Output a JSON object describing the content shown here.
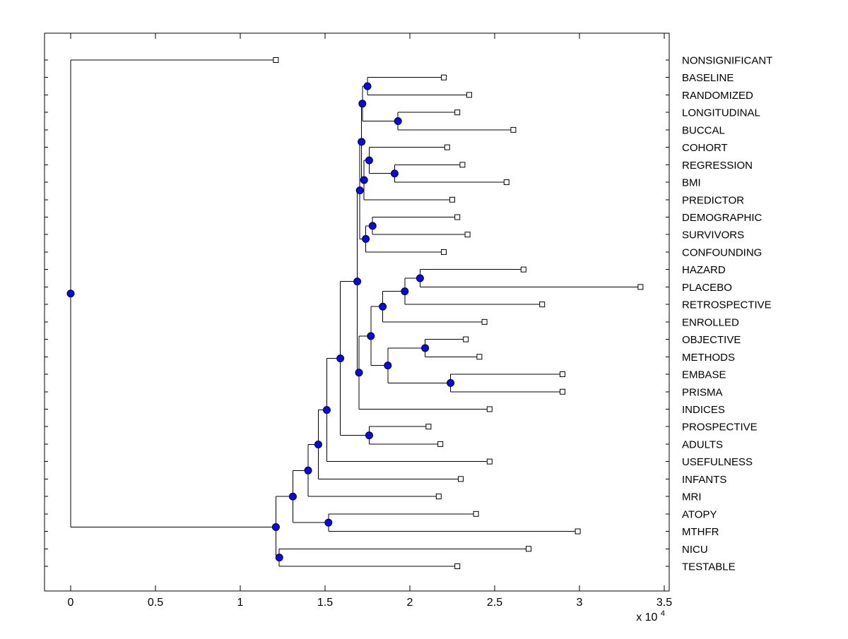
{
  "figure": {
    "background": "#ffffff"
  },
  "chart_data": {
    "type": "dendrogram",
    "orientation": "left-to-right",
    "title": "",
    "x_axis": {
      "ticks": [
        0,
        0.5,
        1,
        1.5,
        2,
        2.5,
        3,
        3.5
      ],
      "exponent_base_text": "x 10",
      "exponent_text": "4",
      "scale_factor": 10000,
      "xlim": [
        -0.15,
        3.53
      ]
    },
    "style": {
      "line_color": "#000000",
      "node_fill": "#0a0ae6",
      "node_stroke": "#000033",
      "leaf_fill": "#ffffff",
      "leaf_stroke": "#000000",
      "label_color": "#000000",
      "axis_color": "#000000"
    },
    "leaves": [
      {
        "label": "NONSIGNIFICANT",
        "x": 1.21
      },
      {
        "label": "BASELINE",
        "x": 2.2
      },
      {
        "label": "RANDOMIZED",
        "x": 2.35
      },
      {
        "label": "LONGITUDINAL",
        "x": 2.28
      },
      {
        "label": "BUCCAL",
        "x": 2.61
      },
      {
        "label": "COHORT",
        "x": 2.22
      },
      {
        "label": "REGRESSION",
        "x": 2.31
      },
      {
        "label": "BMI",
        "x": 2.57
      },
      {
        "label": "PREDICTOR",
        "x": 2.25
      },
      {
        "label": "DEMOGRAPHIC",
        "x": 2.28
      },
      {
        "label": "SURVIVORS",
        "x": 2.34
      },
      {
        "label": "CONFOUNDING",
        "x": 2.2
      },
      {
        "label": "HAZARD",
        "x": 2.67
      },
      {
        "label": "PLACEBO",
        "x": 3.36
      },
      {
        "label": "RETROSPECTIVE",
        "x": 2.78
      },
      {
        "label": "ENROLLED",
        "x": 2.44
      },
      {
        "label": "OBJECTIVE",
        "x": 2.33
      },
      {
        "label": "METHODS",
        "x": 2.41
      },
      {
        "label": "EMBASE",
        "x": 2.9
      },
      {
        "label": "PRISMA",
        "x": 2.9
      },
      {
        "label": "INDICES",
        "x": 2.47
      },
      {
        "label": "PROSPECTIVE",
        "x": 2.11
      },
      {
        "label": "ADULTS",
        "x": 2.18
      },
      {
        "label": "USEFULNESS",
        "x": 2.47
      },
      {
        "label": "INFANTS",
        "x": 2.3
      },
      {
        "label": "MRI",
        "x": 2.17
      },
      {
        "label": "ATOPY",
        "x": 2.39
      },
      {
        "label": "MTHFR",
        "x": 2.99
      },
      {
        "label": "NICU",
        "x": 2.7
      },
      {
        "label": "TESTABLE",
        "x": 2.28
      }
    ],
    "tree": {
      "x": 0.0,
      "children": [
        {
          "leaf": 0
        },
        {
          "x": 1.21,
          "children": [
            {
              "x": 1.31,
              "children": [
                {
                  "x": 1.4,
                  "children": [
                    {
                      "x": 1.46,
                      "children": [
                        {
                          "x": 1.51,
                          "children": [
                            {
                              "x": 1.59,
                              "children": [
                                {
                                  "x": 1.69,
                                  "children": [
                                    {
                                      "x": 1.705,
                                      "children": [
                                        {
                                          "x": 1.715,
                                          "children": [
                                            {
                                              "x": 1.72,
                                              "children": [
                                                {
                                                  "x": 1.75,
                                                  "children": [
                                                    {
                                                      "leaf": 1
                                                    },
                                                    {
                                                      "leaf": 2
                                                    }
                                                  ]
                                                },
                                                {
                                                  "x": 1.93,
                                                  "children": [
                                                    {
                                                      "leaf": 3
                                                    },
                                                    {
                                                      "leaf": 4
                                                    }
                                                  ]
                                                }
                                              ]
                                            },
                                            {
                                              "x": 1.73,
                                              "children": [
                                                {
                                                  "x": 1.76,
                                                  "children": [
                                                    {
                                                      "leaf": 5
                                                    },
                                                    {
                                                      "x": 1.91,
                                                      "children": [
                                                        {
                                                          "leaf": 6
                                                        },
                                                        {
                                                          "leaf": 7
                                                        }
                                                      ]
                                                    }
                                                  ]
                                                },
                                                {
                                                  "leaf": 8
                                                }
                                              ]
                                            }
                                          ]
                                        },
                                        {
                                          "x": 1.74,
                                          "children": [
                                            {
                                              "x": 1.78,
                                              "children": [
                                                {
                                                  "leaf": 9
                                                },
                                                {
                                                  "leaf": 10
                                                }
                                              ]
                                            },
                                            {
                                              "leaf": 11
                                            }
                                          ]
                                        }
                                      ]
                                    },
                                    {
                                      "x": 1.7,
                                      "children": [
                                        {
                                          "x": 1.77,
                                          "children": [
                                            {
                                              "x": 1.84,
                                              "children": [
                                                {
                                                  "x": 1.97,
                                                  "children": [
                                                    {
                                                      "x": 2.06,
                                                      "children": [
                                                        {
                                                          "leaf": 12
                                                        },
                                                        {
                                                          "leaf": 13
                                                        }
                                                      ]
                                                    },
                                                    {
                                                      "leaf": 14
                                                    }
                                                  ]
                                                },
                                                {
                                                  "leaf": 15
                                                }
                                              ]
                                            },
                                            {
                                              "x": 1.87,
                                              "children": [
                                                {
                                                  "x": 2.09,
                                                  "children": [
                                                    {
                                                      "leaf": 16
                                                    },
                                                    {
                                                      "leaf": 17
                                                    }
                                                  ]
                                                },
                                                {
                                                  "x": 2.24,
                                                  "children": [
                                                    {
                                                      "leaf": 18
                                                    },
                                                    {
                                                      "leaf": 19
                                                    }
                                                  ]
                                                }
                                              ]
                                            }
                                          ]
                                        },
                                        {
                                          "leaf": 20
                                        }
                                      ]
                                    }
                                  ]
                                },
                                {
                                  "x": 1.76,
                                  "children": [
                                    {
                                      "leaf": 21
                                    },
                                    {
                                      "leaf": 22
                                    }
                                  ]
                                }
                              ]
                            },
                            {
                              "leaf": 23
                            }
                          ]
                        },
                        {
                          "leaf": 24
                        }
                      ]
                    },
                    {
                      "leaf": 25
                    }
                  ]
                },
                {
                  "x": 1.52,
                  "children": [
                    {
                      "leaf": 26
                    },
                    {
                      "leaf": 27
                    }
                  ]
                }
              ]
            },
            {
              "x": 1.23,
              "children": [
                {
                  "leaf": 28
                },
                {
                  "leaf": 29
                }
              ]
            }
          ]
        }
      ]
    }
  }
}
